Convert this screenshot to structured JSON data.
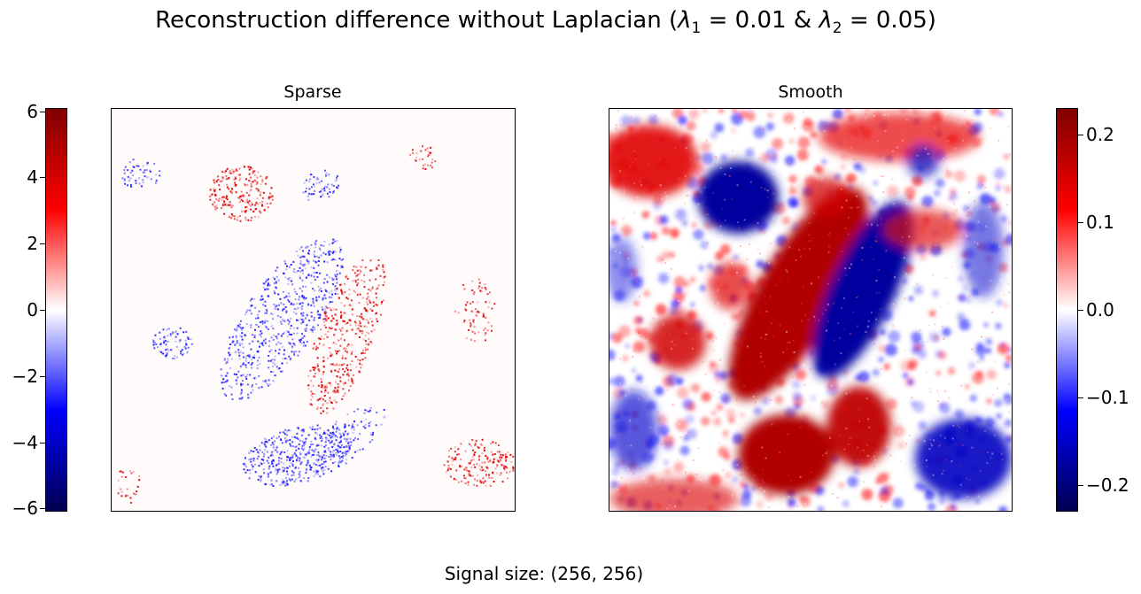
{
  "figure": {
    "title": {
      "prefix": "Reconstruction difference without Laplacian (",
      "lam1_sym": "λ",
      "lam1_sub": "1",
      "lam1_val": " = 0.01 & ",
      "lam2_sym": "λ",
      "lam2_sub": "2",
      "lam2_val": " = 0.05)"
    },
    "caption": "Signal size: (256, 256)"
  },
  "chart_data": [
    {
      "type": "heatmap",
      "title": "Sparse",
      "colormap": "seismic",
      "colorbar": {
        "position": "left",
        "range": [
          -6.1,
          6.1
        ],
        "ticks": [
          6,
          4,
          2,
          0,
          -2,
          -4,
          -6
        ],
        "tick_labels": [
          "6",
          "4",
          "2",
          "0",
          "−2",
          "−4",
          "−6"
        ]
      },
      "grid_size": [
        256,
        256
      ],
      "xticks": false,
      "yticks": false,
      "colors": {
        "positive": "#e00000",
        "negative": "#2020ff",
        "background": "#fffbfb"
      }
    },
    {
      "type": "heatmap",
      "title": "Smooth",
      "colormap": "seismic",
      "colorbar": {
        "position": "right",
        "range": [
          -0.23,
          0.23
        ],
        "ticks": [
          0.2,
          0.1,
          0.0,
          -0.1,
          -0.2
        ],
        "tick_labels": [
          "0.2",
          "0.1",
          "0.0",
          "−0.1",
          "−0.2"
        ]
      },
      "grid_size": [
        256,
        256
      ],
      "xticks": false,
      "yticks": false,
      "colors": {
        "positive": "#b00000",
        "negative": "#00009e",
        "background": "#ffffff"
      }
    }
  ]
}
